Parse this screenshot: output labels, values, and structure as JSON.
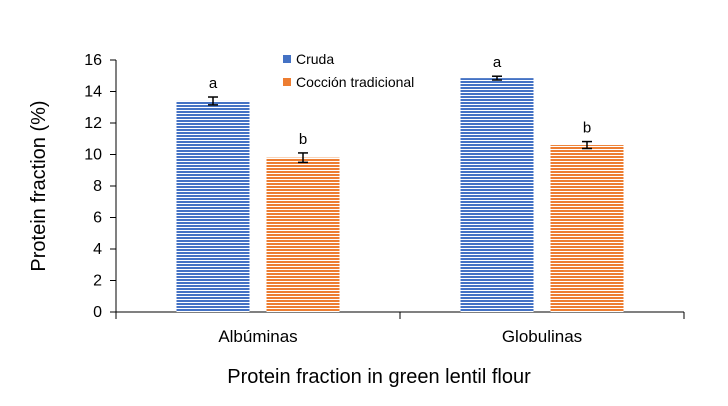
{
  "chart_data": {
    "type": "bar",
    "categories": [
      "Albúminas",
      "Globulinas"
    ],
    "series": [
      {
        "name": "Cruda",
        "values": [
          13.4,
          14.85
        ],
        "errors": [
          0.25,
          0.12
        ],
        "color": "#4472C4",
        "annotations": [
          "a",
          "a"
        ]
      },
      {
        "name": "Cocción tradicional",
        "values": [
          9.8,
          10.6
        ],
        "errors": [
          0.3,
          0.22
        ],
        "color": "#ED7D31",
        "annotations": [
          "b",
          "b"
        ]
      }
    ],
    "xlabel": "Protein fraction in green lentil flour",
    "ylabel": "Protein fraction (%)",
    "ylim": [
      0,
      16
    ],
    "yticks": [
      "0",
      "2",
      "4",
      "6",
      "8",
      "10",
      "12",
      "14",
      "16"
    ],
    "grid": false,
    "legend_position": "top-center"
  }
}
